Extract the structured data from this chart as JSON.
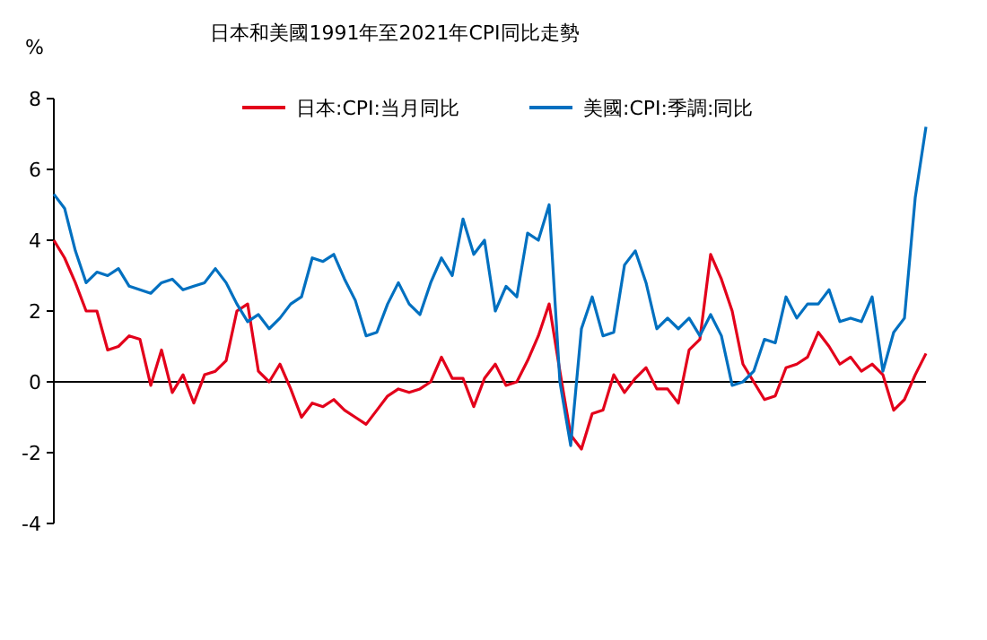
{
  "chart_data": {
    "type": "line",
    "title": "日本和美國1991年至2021年CPI同比走勢",
    "ylabel": "%",
    "categories": [
      null,
      null,
      null,
      null,
      null,
      null,
      null,
      null,
      null,
      null,
      null,
      null,
      null,
      null,
      null,
      null,
      null,
      null,
      null,
      null,
      null,
      null,
      null,
      null,
      null,
      null,
      null,
      null,
      null,
      null,
      null,
      null,
      null,
      null,
      null,
      null,
      null,
      null,
      null,
      null,
      null,
      null,
      null,
      null,
      null,
      null,
      null,
      null,
      null,
      null,
      null,
      null,
      null,
      null,
      null,
      null,
      null,
      null,
      null,
      null,
      null,
      null,
      null,
      null,
      null,
      null,
      null,
      null,
      null,
      null,
      null,
      null,
      null,
      null,
      null,
      null,
      null,
      null,
      null,
      null,
      null,
      null
    ],
    "series": [
      {
        "name": "日本:CPI:当月同比",
        "color": "#e3001b",
        "values": [
          4.0,
          3.5,
          2.8,
          2.0,
          2.0,
          0.9,
          1.0,
          1.3,
          1.2,
          -0.1,
          0.9,
          -0.3,
          0.2,
          -0.6,
          0.2,
          0.3,
          0.6,
          2.0,
          2.2,
          0.3,
          0.0,
          0.5,
          -0.2,
          -1.0,
          -0.6,
          -0.7,
          -0.5,
          -0.8,
          -1.0,
          -1.2,
          -0.8,
          -0.4,
          -0.2,
          -0.3,
          -0.2,
          0.0,
          0.7,
          0.1,
          0.1,
          -0.7,
          0.1,
          0.5,
          -0.1,
          0.0,
          0.6,
          1.3,
          2.2,
          0.3,
          -1.5,
          -1.9,
          -0.9,
          -0.8,
          0.2,
          -0.3,
          0.1,
          0.4,
          -0.2,
          -0.2,
          -0.6,
          0.9,
          1.2,
          3.6,
          2.9,
          2.0,
          0.5,
          0.0,
          -0.5,
          -0.4,
          0.4,
          0.5,
          0.7,
          1.4,
          1.0,
          0.5,
          0.7,
          0.3,
          0.5,
          0.2,
          -0.8,
          -0.5,
          0.2,
          0.8
        ]
      },
      {
        "name": "美國:CPI:季調:同比",
        "color": "#0070c0",
        "values": [
          5.3,
          4.9,
          3.7,
          2.8,
          3.1,
          3.0,
          3.2,
          2.7,
          2.6,
          2.5,
          2.8,
          2.9,
          2.6,
          2.7,
          2.8,
          3.2,
          2.8,
          2.2,
          1.7,
          1.9,
          1.5,
          1.8,
          2.2,
          2.4,
          3.5,
          3.4,
          3.6,
          2.9,
          2.3,
          1.3,
          1.4,
          2.2,
          2.8,
          2.2,
          1.9,
          2.8,
          3.5,
          3.0,
          4.6,
          3.6,
          4.0,
          2.0,
          2.7,
          2.4,
          4.2,
          4.0,
          5.0,
          0.0,
          -1.8,
          1.5,
          2.4,
          1.3,
          1.4,
          3.3,
          3.7,
          2.8,
          1.5,
          1.8,
          1.5,
          1.8,
          1.3,
          1.9,
          1.3,
          -0.1,
          0.0,
          0.3,
          1.2,
          1.1,
          2.4,
          1.8,
          2.2,
          2.2,
          2.6,
          1.7,
          1.8,
          1.7,
          2.4,
          0.3,
          1.4,
          1.8,
          5.2,
          7.2
        ]
      }
    ],
    "ylim": [
      -4,
      8
    ],
    "yticks": [
      -4,
      -2,
      0,
      2,
      4,
      6,
      8
    ],
    "legend": "top",
    "ref_lines": [
      {
        "axis": "y",
        "value": 0,
        "color": "#000000"
      }
    ],
    "marker": "none",
    "line_style": "solid",
    "tick_labels": "y"
  }
}
